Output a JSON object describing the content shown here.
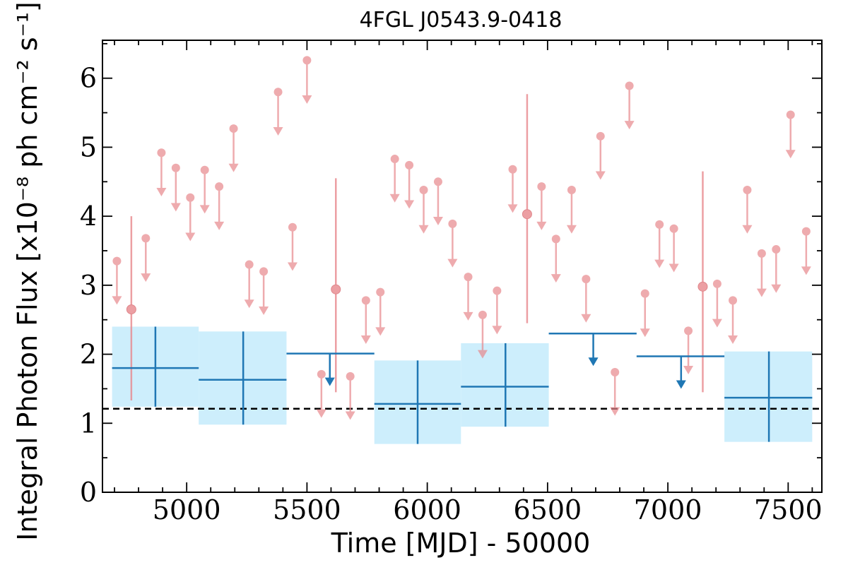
{
  "chart_data": {
    "type": "scatter",
    "title": "4FGL J0543.9-0418",
    "xlabel": "Time [MJD] - 50000",
    "ylabel": "Integral Photon Flux [x10⁻⁸ ph cm⁻² s⁻¹]",
    "xlim": [
      4650,
      7640
    ],
    "ylim": [
      0,
      6.55
    ],
    "xticks": [
      5000,
      5500,
      6000,
      6500,
      7000,
      7500
    ],
    "xtick_labels": [
      "5000",
      "5500",
      "6000",
      "6500",
      "7000",
      "7500"
    ],
    "yticks": [
      0,
      1,
      2,
      3,
      4,
      5,
      6
    ],
    "ytick_labels": [
      "0",
      "1",
      "2",
      "3",
      "4",
      "5",
      "6"
    ],
    "grid": false,
    "colors": {
      "short_bins": "#e8888d",
      "long_bins": "#1f77b4",
      "long_bins_band": "#cdeefc",
      "mean_line": "#000000"
    },
    "reference_line": {
      "y": 1.21,
      "style": "dashed"
    },
    "series": [
      {
        "description": "short time bins, upper limits",
        "points": [
          {
            "x": 4710,
            "y": 3.35
          },
          {
            "x": 4830,
            "y": 3.68
          },
          {
            "x": 4895,
            "y": 4.92
          },
          {
            "x": 4955,
            "y": 4.7
          },
          {
            "x": 5015,
            "y": 4.27
          },
          {
            "x": 5075,
            "y": 4.67
          },
          {
            "x": 5135,
            "y": 4.43
          },
          {
            "x": 5195,
            "y": 5.27
          },
          {
            "x": 5260,
            "y": 3.3
          },
          {
            "x": 5320,
            "y": 3.2
          },
          {
            "x": 5380,
            "y": 5.8
          },
          {
            "x": 5440,
            "y": 3.84
          },
          {
            "x": 5500,
            "y": 6.26
          },
          {
            "x": 5560,
            "y": 1.71
          },
          {
            "x": 5680,
            "y": 1.68
          },
          {
            "x": 5745,
            "y": 2.78
          },
          {
            "x": 5805,
            "y": 2.9
          },
          {
            "x": 5865,
            "y": 4.83
          },
          {
            "x": 5925,
            "y": 4.74
          },
          {
            "x": 5985,
            "y": 4.38
          },
          {
            "x": 6045,
            "y": 4.5
          },
          {
            "x": 6105,
            "y": 3.89
          },
          {
            "x": 6170,
            "y": 3.12
          },
          {
            "x": 6230,
            "y": 2.57
          },
          {
            "x": 6290,
            "y": 2.92
          },
          {
            "x": 6355,
            "y": 4.68
          },
          {
            "x": 6475,
            "y": 4.43
          },
          {
            "x": 6535,
            "y": 3.67
          },
          {
            "x": 6600,
            "y": 4.38
          },
          {
            "x": 6660,
            "y": 3.09
          },
          {
            "x": 6720,
            "y": 5.16
          },
          {
            "x": 6780,
            "y": 1.74
          },
          {
            "x": 6840,
            "y": 5.89
          },
          {
            "x": 6905,
            "y": 2.88
          },
          {
            "x": 6965,
            "y": 3.88
          },
          {
            "x": 7025,
            "y": 3.82
          },
          {
            "x": 7085,
            "y": 2.34
          },
          {
            "x": 7205,
            "y": 3.02
          },
          {
            "x": 7270,
            "y": 2.78
          },
          {
            "x": 7330,
            "y": 4.38
          },
          {
            "x": 7390,
            "y": 3.46
          },
          {
            "x": 7450,
            "y": 3.52
          },
          {
            "x": 7510,
            "y": 5.47
          },
          {
            "x": 7575,
            "y": 3.78
          }
        ]
      },
      {
        "description": "short time bins, detections",
        "points": [
          {
            "x": 4770,
            "y": 2.65,
            "ylow": 1.33,
            "yhigh": 4.0
          },
          {
            "x": 5620,
            "y": 2.94,
            "ylow": 1.45,
            "yhigh": 4.55
          },
          {
            "x": 6415,
            "y": 4.03,
            "ylow": 2.45,
            "yhigh": 5.77
          },
          {
            "x": 7145,
            "y": 2.98,
            "ylow": 1.45,
            "yhigh": 4.65
          }
        ]
      },
      {
        "description": "long time bins, detections",
        "points": [
          {
            "x": 4870,
            "xlow": 4690,
            "xhigh": 5050,
            "y": 1.8,
            "ylow": 1.24,
            "yhigh": 2.4
          },
          {
            "x": 5235,
            "xlow": 5050,
            "xhigh": 5415,
            "y": 1.63,
            "ylow": 0.98,
            "yhigh": 2.33
          },
          {
            "x": 5960,
            "xlow": 5780,
            "xhigh": 6140,
            "y": 1.28,
            "ylow": 0.7,
            "yhigh": 1.91
          },
          {
            "x": 6325,
            "xlow": 6140,
            "xhigh": 6505,
            "y": 1.53,
            "ylow": 0.95,
            "yhigh": 2.16
          },
          {
            "x": 7420,
            "xlow": 7235,
            "xhigh": 7600,
            "y": 1.37,
            "ylow": 0.73,
            "yhigh": 2.04
          }
        ]
      },
      {
        "description": "long time bins, upper limits",
        "points": [
          {
            "x": 5595,
            "xlow": 5415,
            "xhigh": 5780,
            "y": 2.01
          },
          {
            "x": 6690,
            "xlow": 6505,
            "xhigh": 6870,
            "y": 2.3
          },
          {
            "x": 7055,
            "xlow": 6870,
            "xhigh": 7235,
            "y": 1.97
          }
        ]
      }
    ]
  }
}
